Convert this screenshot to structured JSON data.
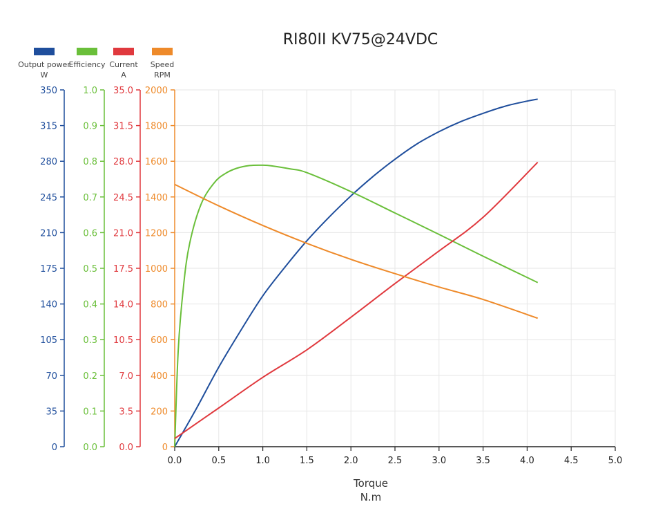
{
  "chart_data": {
    "type": "line",
    "title": "RI80II KV75@24VDC",
    "xlabel": "Torque",
    "xunit": "N.m",
    "xlim": [
      0,
      5.0
    ],
    "x_ticks": [
      "0.0",
      "0.5",
      "1.0",
      "1.5",
      "2.0",
      "2.5",
      "3.0",
      "3.5",
      "4.0",
      "4.5",
      "5.0"
    ],
    "grid": true,
    "legend_position": "top-left",
    "axes": [
      {
        "id": "power",
        "name": "Output power",
        "unit": "W",
        "color": "#1f4e9c",
        "ylim": [
          0,
          350
        ],
        "ticks": [
          "0",
          "35",
          "70",
          "105",
          "140",
          "175",
          "210",
          "245",
          "280",
          "315",
          "350"
        ]
      },
      {
        "id": "eff",
        "name": "Efficiency",
        "unit": "",
        "color": "#6abf3a",
        "ylim": [
          0,
          1.0
        ],
        "ticks": [
          "0.0",
          "0.1",
          "0.2",
          "0.3",
          "0.4",
          "0.5",
          "0.6",
          "0.7",
          "0.8",
          "0.9",
          "1.0"
        ]
      },
      {
        "id": "current",
        "name": "Current",
        "unit": "A",
        "color": "#e0393e",
        "ylim": [
          0,
          35.0
        ],
        "ticks": [
          "0.0",
          "3.5",
          "7.0",
          "10.5",
          "14.0",
          "17.5",
          "21.0",
          "24.5",
          "28.0",
          "31.5",
          "35.0"
        ]
      },
      {
        "id": "speed",
        "name": "Speed",
        "unit": "RPM",
        "color": "#ee8a2a",
        "ylim": [
          0,
          2000
        ],
        "ticks": [
          "0",
          "200",
          "400",
          "600",
          "800",
          "1000",
          "1200",
          "1400",
          "1600",
          "1800",
          "2000"
        ]
      }
    ],
    "series": [
      {
        "name": "Output power",
        "axis": "power",
        "x": [
          0,
          0.25,
          0.5,
          0.75,
          1.0,
          1.25,
          1.5,
          1.75,
          2.0,
          2.25,
          2.5,
          2.75,
          3.0,
          3.25,
          3.5,
          3.75,
          4.0,
          4.12
        ],
        "y": [
          0,
          38,
          78,
          114,
          148,
          176,
          202,
          225,
          246,
          265,
          282,
          297,
          309,
          319,
          327,
          334,
          339,
          341
        ]
      },
      {
        "name": "Efficiency",
        "axis": "eff",
        "x": [
          0,
          0.04,
          0.1,
          0.17,
          0.3,
          0.45,
          0.57,
          0.7,
          0.85,
          1.0,
          1.1,
          1.3,
          1.5,
          2.0,
          2.5,
          3.0,
          3.45,
          4.12
        ],
        "y": [
          0.0,
          0.27,
          0.45,
          0.57,
          0.68,
          0.74,
          0.765,
          0.78,
          0.788,
          0.789,
          0.787,
          0.779,
          0.768,
          0.715,
          0.655,
          0.595,
          0.54,
          0.46
        ]
      },
      {
        "name": "Current",
        "axis": "current",
        "x": [
          0,
          0.5,
          1.0,
          1.5,
          2.0,
          2.5,
          3.0,
          3.5,
          4.12
        ],
        "y": [
          0.8,
          3.8,
          6.8,
          9.5,
          12.7,
          16.0,
          19.2,
          22.5,
          27.9
        ]
      },
      {
        "name": "Speed",
        "axis": "speed",
        "x": [
          0,
          0.5,
          1.0,
          1.5,
          2.0,
          2.5,
          3.0,
          3.5,
          4.12
        ],
        "y": [
          1470,
          1350,
          1240,
          1140,
          1050,
          970,
          895,
          825,
          720
        ]
      }
    ]
  }
}
